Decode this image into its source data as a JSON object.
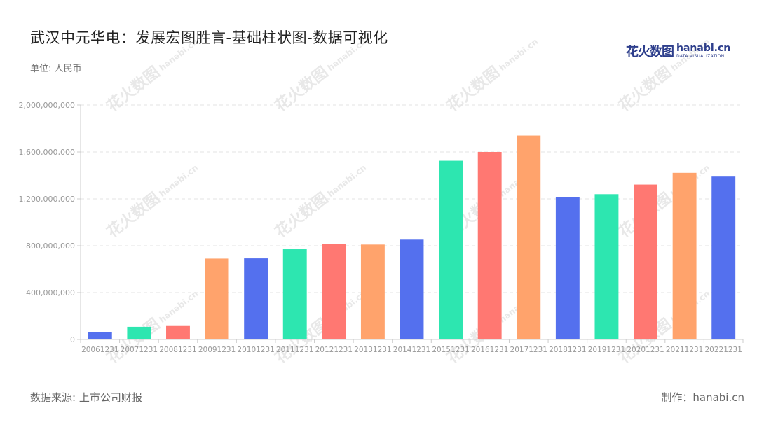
{
  "header": {
    "title": "武汉中元华电：发展宏图胜言-基础柱状图-数据可视化",
    "unit": "单位: 人民币"
  },
  "logo": {
    "cn": "花火数图",
    "en": "hanabi.cn",
    "en_sub": "DATA VISUALIZATION",
    "brand_color": "#2d3e8c"
  },
  "footer": {
    "source": "数据来源: 上市公司财报",
    "maker": "制作：hanabi.cn"
  },
  "watermark": {
    "cn": "花火数图",
    "en": "hanabi.cn"
  },
  "colors": [
    "#5470ee",
    "#2de6b0",
    "#ff7872",
    "#ffa36c"
  ],
  "chart_data": {
    "type": "bar",
    "categories": [
      "20061231",
      "20071231",
      "20081231",
      "20091231",
      "20101231",
      "20111231",
      "20121231",
      "20131231",
      "20141231",
      "20151231",
      "20161231",
      "20171231",
      "20181231",
      "20191231",
      "20201231",
      "20211231",
      "20221231"
    ],
    "values": [
      62000000,
      108000000,
      115000000,
      690000000,
      692000000,
      770000000,
      812000000,
      810000000,
      852000000,
      1525000000,
      1600000000,
      1740000000,
      1213000000,
      1240000000,
      1322000000,
      1422000000,
      1390000000
    ],
    "bar_color_sequence": [
      "#5470ee",
      "#2de6b0",
      "#ff7872",
      "#ffa36c",
      "#5470ee",
      "#2de6b0",
      "#ff7872",
      "#ffa36c",
      "#5470ee",
      "#2de6b0",
      "#ff7872",
      "#ffa36c",
      "#5470ee",
      "#2de6b0",
      "#ff7872",
      "#ffa36c",
      "#5470ee"
    ],
    "y_ticks": [
      "0",
      "400,000,000",
      "800,000,000",
      "1,200,000,000",
      "1,600,000,000",
      "2,000,000,000"
    ],
    "ylim": [
      0,
      2000000000
    ],
    "xlabel": "",
    "ylabel": "",
    "grid": true,
    "legend": "none"
  }
}
